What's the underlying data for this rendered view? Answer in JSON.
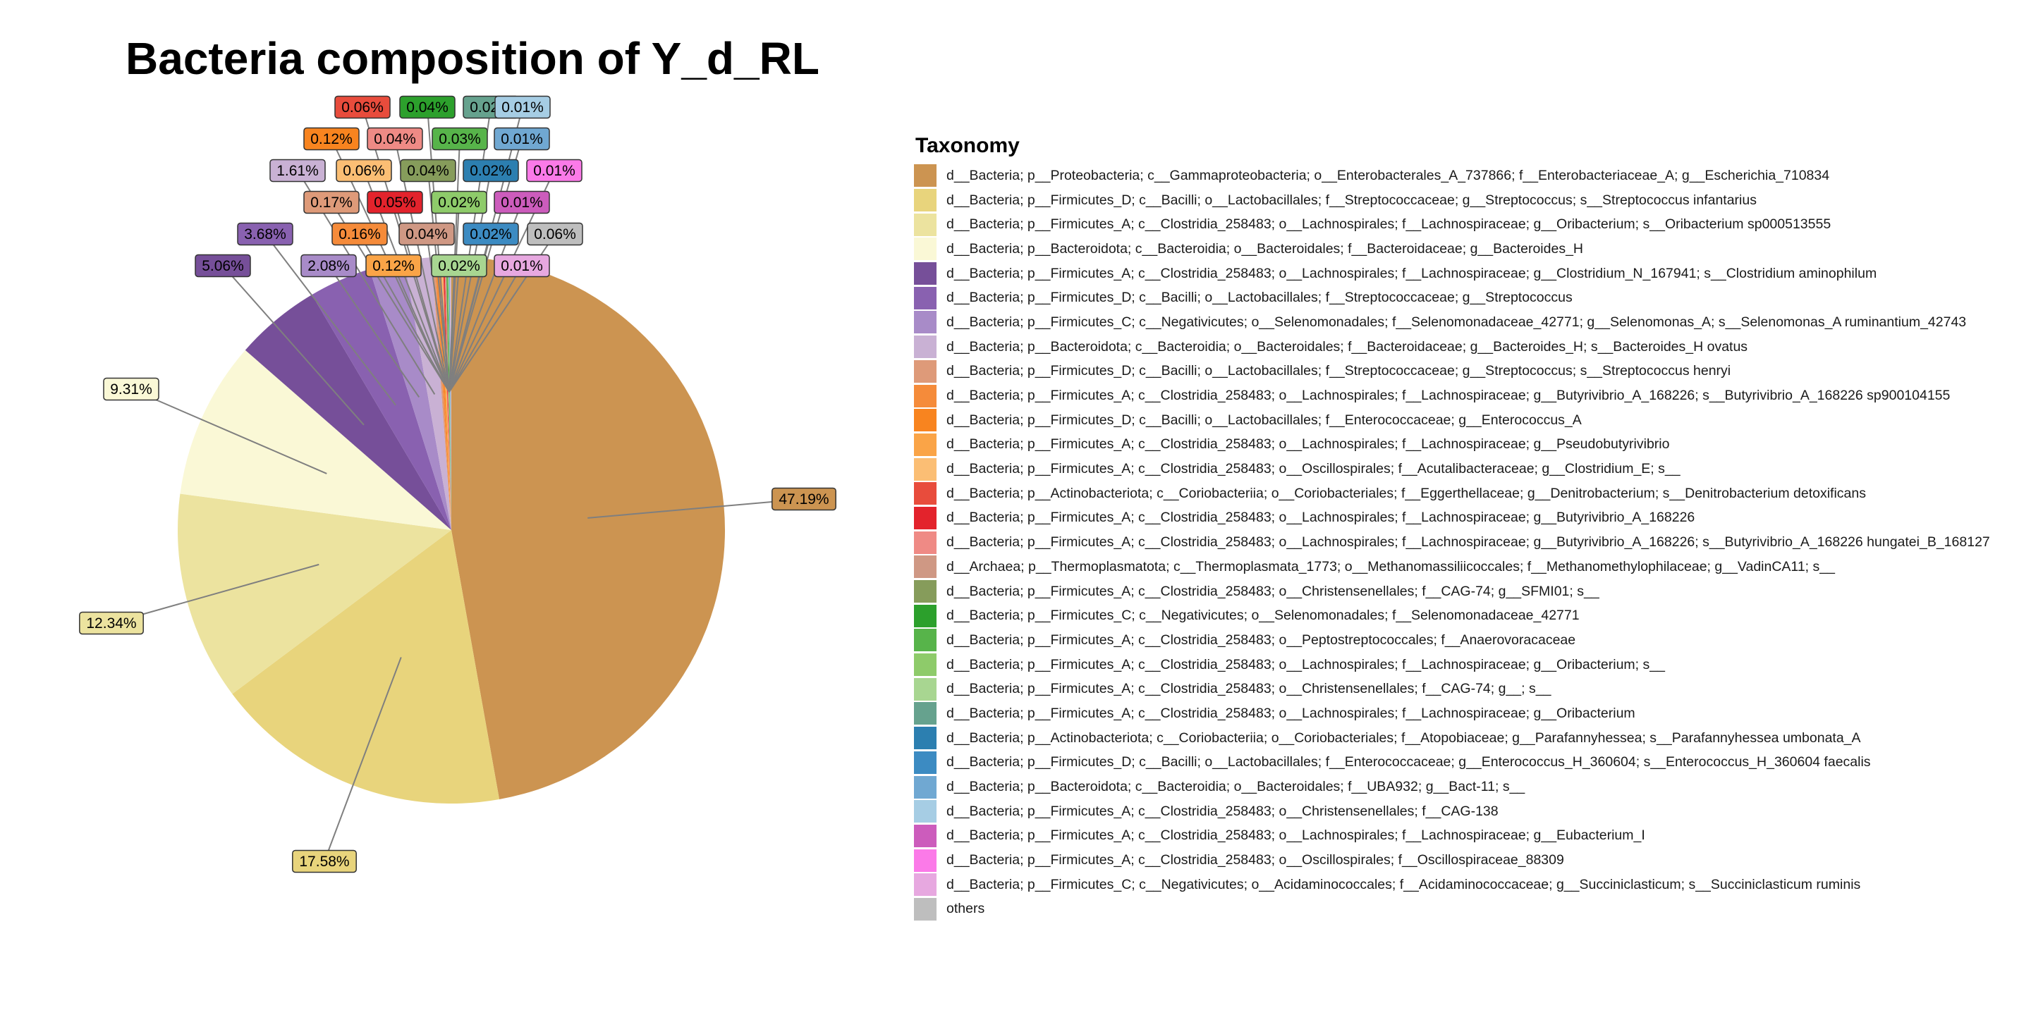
{
  "chart_data": {
    "type": "pie",
    "title": "Bacteria composition of Y_d_RL",
    "legend_title": "Taxonomy",
    "legend_position": "right",
    "slices": [
      {
        "label": "d__Bacteria; p__Proteobacteria; c__Gammaproteobacteria; o__Enterobacterales_A_737866; f__Enterobacteriaceae_A; g__Escherichia_710834",
        "value": 47.19,
        "value_label": "47.19%",
        "color": "#CC9451"
      },
      {
        "label": "d__Bacteria; p__Firmicutes_D; c__Bacilli; o__Lactobacillales; f__Streptococcaceae; g__Streptococcus; s__Streptococcus infantarius",
        "value": 17.58,
        "value_label": "17.58%",
        "color": "#E8D47C"
      },
      {
        "label": "d__Bacteria; p__Firmicutes_A; c__Clostridia_258483; o__Lachnospirales; f__Lachnospiraceae; g__Oribacterium; s__Oribacterium sp000513555",
        "value": 12.34,
        "value_label": "12.34%",
        "color": "#ECE39F"
      },
      {
        "label": "d__Bacteria; p__Bacteroidota; c__Bacteroidia; o__Bacteroidales; f__Bacteroidaceae; g__Bacteroides_H",
        "value": 9.31,
        "value_label": "9.31%",
        "color": "#FAF8D6"
      },
      {
        "label": "d__Bacteria; p__Firmicutes_A; c__Clostridia_258483; o__Lachnospirales; f__Lachnospiraceae; g__Clostridium_N_167941; s__Clostridium aminophilum",
        "value": 5.06,
        "value_label": "5.06%",
        "color": "#764F99"
      },
      {
        "label": "d__Bacteria; p__Firmicutes_D; c__Bacilli; o__Lactobacillales; f__Streptococcaceae; g__Streptococcus",
        "value": 3.68,
        "value_label": "3.68%",
        "color": "#8961B0"
      },
      {
        "label": "d__Bacteria; p__Firmicutes_C; c__Negativicutes; o__Selenomonadales; f__Selenomonadaceae_42771; g__Selenomonas_A; s__Selenomonas_A ruminantium_42743",
        "value": 2.08,
        "value_label": "2.08%",
        "color": "#A88BC8"
      },
      {
        "label": "d__Bacteria; p__Bacteroidota; c__Bacteroidia; o__Bacteroidales; f__Bacteroidaceae; g__Bacteroides_H; s__Bacteroides_H ovatus",
        "value": 1.61,
        "value_label": "1.61%",
        "color": "#C9B1D4"
      },
      {
        "label": "d__Bacteria; p__Firmicutes_D; c__Bacilli; o__Lactobacillales; f__Streptococcaceae; g__Streptococcus; s__Streptococcus henryi",
        "value": 0.17,
        "value_label": "0.17%",
        "color": "#DE9A79"
      },
      {
        "label": "d__Bacteria; p__Firmicutes_A; c__Clostridia_258483; o__Lachnospirales; f__Lachnospiraceae; g__Butyrivibrio_A_168226; s__Butyrivibrio_A_168226 sp900104155",
        "value": 0.16,
        "value_label": "0.16%",
        "color": "#F58B3A"
      },
      {
        "label": "d__Bacteria; p__Firmicutes_D; c__Bacilli; o__Lactobacillales; f__Enterococcaceae; g__Enterococcus_A",
        "value": 0.12,
        "value_label": "0.12%",
        "color": "#F8841F"
      },
      {
        "label": "d__Bacteria; p__Firmicutes_A; c__Clostridia_258483; o__Lachnospirales; f__Lachnospiraceae; g__Pseudobutyrivibrio",
        "value": 0.12,
        "value_label": "0.12%",
        "color": "#FAA447"
      },
      {
        "label": "d__Bacteria; p__Firmicutes_A; c__Clostridia_258483; o__Oscillospirales; f__Acutalibacteraceae; g__Clostridium_E; s__",
        "value": 0.06,
        "value_label": "0.06%",
        "color": "#FBBE74"
      },
      {
        "label": "d__Bacteria; p__Actinobacteriota; c__Coriobacteriia; o__Coriobacteriales; f__Eggerthellaceae; g__Denitrobacterium; s__Denitrobacterium detoxificans",
        "value": 0.06,
        "value_label": "0.06%",
        "color": "#E84C3C"
      },
      {
        "label": "d__Bacteria; p__Firmicutes_A; c__Clostridia_258483; o__Lachnospirales; f__Lachnospiraceae; g__Butyrivibrio_A_168226",
        "value": 0.05,
        "value_label": "0.05%",
        "color": "#E3232C"
      },
      {
        "label": "d__Bacteria; p__Firmicutes_A; c__Clostridia_258483; o__Lachnospirales; f__Lachnospiraceae; g__Butyrivibrio_A_168226; s__Butyrivibrio_A_168226 hungatei_B_168127",
        "value": 0.04,
        "value_label": "0.04%",
        "color": "#EF8A85"
      },
      {
        "label": "d__Archaea; p__Thermoplasmatota; c__Thermoplasmata_1773; o__Methanomassiliicoccales; f__Methanomethylophilaceae; g__VadinCA11; s__",
        "value": 0.04,
        "value_label": "0.04%",
        "color": "#CF9884"
      },
      {
        "label": "d__Bacteria; p__Firmicutes_A; c__Clostridia_258483; o__Christensenellales; f__CAG-74; g__SFMI01; s__",
        "value": 0.04,
        "value_label": "0.04%",
        "color": "#869C5B"
      },
      {
        "label": "d__Bacteria; p__Firmicutes_C; c__Negativicutes; o__Selenomonadales; f__Selenomonadaceae_42771",
        "value": 0.04,
        "value_label": "0.04%",
        "color": "#2CA02C"
      },
      {
        "label": "d__Bacteria; p__Firmicutes_A; c__Clostridia_258483; o__Peptostreptococcales; f__Anaerovoracaceae",
        "value": 0.03,
        "value_label": "0.03%",
        "color": "#57B44A"
      },
      {
        "label": "d__Bacteria; p__Firmicutes_A; c__Clostridia_258483; o__Lachnospirales; f__Lachnospiraceae; g__Oribacterium; s__",
        "value": 0.02,
        "value_label": "0.02%",
        "color": "#8ECB6A"
      },
      {
        "label": "d__Bacteria; p__Firmicutes_A; c__Clostridia_258483; o__Christensenellales; f__CAG-74; g__; s__",
        "value": 0.02,
        "value_label": "0.02%",
        "color": "#A8D691"
      },
      {
        "label": "d__Bacteria; p__Firmicutes_A; c__Clostridia_258483; o__Lachnospirales; f__Lachnospiraceae; g__Oribacterium",
        "value": 0.02,
        "value_label": "0.02%",
        "color": "#66A28E"
      },
      {
        "label": "d__Bacteria; p__Actinobacteriota; c__Coriobacteriia; o__Coriobacteriales; f__Atopobiaceae; g__Parafannyhessea; s__Parafannyhessea umbonata_A",
        "value": 0.02,
        "value_label": "0.02%",
        "color": "#2C7FB0"
      },
      {
        "label": "d__Bacteria; p__Firmicutes_D; c__Bacilli; o__Lactobacillales; f__Enterococcaceae; g__Enterococcus_H_360604; s__Enterococcus_H_360604 faecalis",
        "value": 0.02,
        "value_label": "0.02%",
        "color": "#3C8BC2"
      },
      {
        "label": "d__Bacteria; p__Bacteroidota; c__Bacteroidia; o__Bacteroidales; f__UBA932; g__Bact-11; s__",
        "value": 0.01,
        "value_label": "0.01%",
        "color": "#70A8D2"
      },
      {
        "label": "d__Bacteria; p__Firmicutes_A; c__Clostridia_258483; o__Christensenellales; f__CAG-138",
        "value": 0.01,
        "value_label": "0.01%",
        "color": "#A6CDE4"
      },
      {
        "label": "d__Bacteria; p__Firmicutes_A; c__Clostridia_258483; o__Lachnospirales; f__Lachnospiraceae; g__Eubacterium_I",
        "value": 0.01,
        "value_label": "0.01%",
        "color": "#CC5CBC"
      },
      {
        "label": "d__Bacteria; p__Firmicutes_A; c__Clostridia_258483; o__Oscillospirales; f__Oscillospiraceae_88309",
        "value": 0.01,
        "value_label": "0.01%",
        "color": "#FB7AE8"
      },
      {
        "label": "d__Bacteria; p__Firmicutes_C; c__Negativicutes; o__Acidaminococcales; f__Acidaminococcaceae; g__Succiniclasticum; s__Succiniclasticum ruminis",
        "value": 0.01,
        "value_label": "0.01%",
        "color": "#E7A8E0"
      },
      {
        "label": "others",
        "value": 0.06,
        "value_label": "0.06%",
        "color": "#BEBEBE"
      }
    ]
  }
}
